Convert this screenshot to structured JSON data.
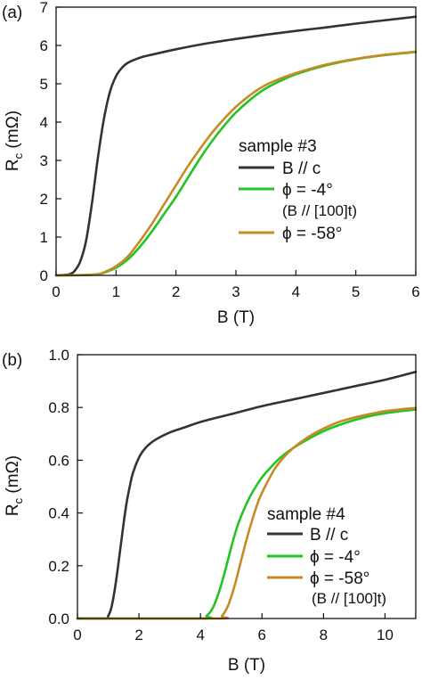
{
  "chart_data": [
    {
      "type": "line",
      "panel_label": "(a)",
      "xlabel": "B (T)",
      "ylabel": "R_c (mΩ)",
      "ylabel_main": "R",
      "ylabel_sub": "c",
      "ylabel_unit": " (mΩ)",
      "xlim": [
        0,
        6
      ],
      "ylim": [
        0,
        7
      ],
      "xticks": [
        0,
        1,
        2,
        3,
        4,
        5,
        6
      ],
      "xtick_labels": [
        "0",
        "1",
        "2",
        "3",
        "4",
        "5",
        "6"
      ],
      "yticks": [
        0,
        1,
        2,
        3,
        4,
        5,
        6,
        7
      ],
      "ytick_labels": [
        "0",
        "1",
        "2",
        "3",
        "4",
        "5",
        "6",
        "7"
      ],
      "grid": false,
      "legend_title": "sample #3",
      "legend_position": "right-middle",
      "series": [
        {
          "name": "B // c",
          "color": "#333333",
          "x": [
            0,
            0.2,
            0.25,
            0.3,
            0.4,
            0.5,
            0.6,
            0.7,
            0.8,
            0.9,
            1.0,
            1.1,
            1.2,
            1.4,
            1.6,
            2.0,
            2.5,
            3.0,
            3.5,
            4.0,
            4.5,
            5.0,
            5.5,
            6.0
          ],
          "y": [
            0,
            0.02,
            0.05,
            0.1,
            0.35,
            0.9,
            1.9,
            3.1,
            4.1,
            4.8,
            5.2,
            5.42,
            5.55,
            5.68,
            5.76,
            5.9,
            6.05,
            6.17,
            6.28,
            6.38,
            6.47,
            6.57,
            6.66,
            6.75
          ]
        },
        {
          "name": "ϕ = -4°",
          "note": "(B // [100]t)",
          "color": "#22c322",
          "x": [
            0,
            0.5,
            0.7,
            0.8,
            1.0,
            1.2,
            1.4,
            1.6,
            1.8,
            2.0,
            2.2,
            2.4,
            2.6,
            2.8,
            3.0,
            3.25,
            3.5,
            3.75,
            4.0,
            4.5,
            5.0,
            5.5,
            6.0
          ],
          "y": [
            0,
            0.01,
            0.03,
            0.07,
            0.2,
            0.42,
            0.75,
            1.15,
            1.6,
            2.05,
            2.55,
            3.05,
            3.5,
            3.9,
            4.25,
            4.6,
            4.88,
            5.08,
            5.25,
            5.48,
            5.64,
            5.75,
            5.83
          ]
        },
        {
          "name": "ϕ = -58°",
          "color": "#c68b24",
          "x": [
            0,
            0.5,
            0.7,
            0.8,
            1.0,
            1.2,
            1.4,
            1.6,
            1.8,
            2.0,
            2.2,
            2.4,
            2.6,
            2.8,
            3.0,
            3.25,
            3.5,
            3.75,
            4.0,
            4.5,
            5.0,
            5.5,
            6.0
          ],
          "y": [
            0,
            0.01,
            0.03,
            0.08,
            0.24,
            0.5,
            0.9,
            1.35,
            1.85,
            2.35,
            2.85,
            3.3,
            3.72,
            4.08,
            4.4,
            4.72,
            4.97,
            5.14,
            5.28,
            5.5,
            5.65,
            5.76,
            5.84
          ]
        }
      ]
    },
    {
      "type": "line",
      "panel_label": "(b)",
      "xlabel": "B (T)",
      "ylabel": "R_c (mΩ)",
      "ylabel_main": "R",
      "ylabel_sub": "c",
      "ylabel_unit": " (mΩ)",
      "xlim": [
        0,
        11
      ],
      "ylim": [
        0,
        1.0
      ],
      "xticks": [
        0,
        2,
        4,
        6,
        8,
        10
      ],
      "xtick_labels": [
        "0",
        "2",
        "4",
        "6",
        "8",
        "10"
      ],
      "yticks": [
        0,
        0.2,
        0.4,
        0.6,
        0.8,
        1.0
      ],
      "ytick_labels": [
        "0.0",
        "0.2",
        "0.4",
        "0.6",
        "0.8",
        "1.0"
      ],
      "grid": false,
      "legend_title": "sample #4",
      "legend_position": "right-middle",
      "series": [
        {
          "name": "B // c",
          "color": "#333333",
          "x": [
            0,
            0.9,
            1.0,
            1.1,
            1.2,
            1.3,
            1.4,
            1.5,
            1.6,
            1.7,
            1.8,
            2.0,
            2.2,
            2.5,
            3.0,
            3.5,
            4.0,
            5.0,
            6.0,
            7.0,
            8.0,
            9.0,
            10.0,
            11.0
          ],
          "y": [
            0,
            0.0,
            0.01,
            0.04,
            0.1,
            0.18,
            0.27,
            0.36,
            0.44,
            0.5,
            0.55,
            0.61,
            0.645,
            0.675,
            0.705,
            0.725,
            0.745,
            0.775,
            0.805,
            0.83,
            0.855,
            0.88,
            0.905,
            0.935
          ]
        },
        {
          "name": "ϕ = -4°",
          "color": "#22c322",
          "x": [
            0,
            4.0,
            4.2,
            4.4,
            4.6,
            4.8,
            5.0,
            5.2,
            5.4,
            5.6,
            5.8,
            6.0,
            6.3,
            6.6,
            7.0,
            7.5,
            8.0,
            8.5,
            9.0,
            9.5,
            10.0,
            10.5,
            11.0
          ],
          "y": [
            0,
            0.0,
            0.01,
            0.04,
            0.1,
            0.18,
            0.27,
            0.35,
            0.41,
            0.46,
            0.5,
            0.535,
            0.575,
            0.61,
            0.645,
            0.68,
            0.71,
            0.733,
            0.752,
            0.767,
            0.778,
            0.786,
            0.792
          ]
        },
        {
          "name": "ϕ = -58°",
          "note": "(B // [100]t)",
          "color": "#c68b24",
          "x": [
            0,
            4.5,
            4.7,
            4.9,
            5.1,
            5.3,
            5.5,
            5.7,
            5.9,
            6.1,
            6.4,
            6.7,
            7.0,
            7.5,
            8.0,
            8.5,
            9.0,
            9.5,
            10.0,
            10.5,
            11.0
          ],
          "y": [
            0,
            0.0,
            0.01,
            0.05,
            0.12,
            0.21,
            0.3,
            0.38,
            0.45,
            0.5,
            0.565,
            0.61,
            0.645,
            0.688,
            0.72,
            0.745,
            0.762,
            0.775,
            0.786,
            0.793,
            0.798
          ]
        }
      ]
    }
  ]
}
